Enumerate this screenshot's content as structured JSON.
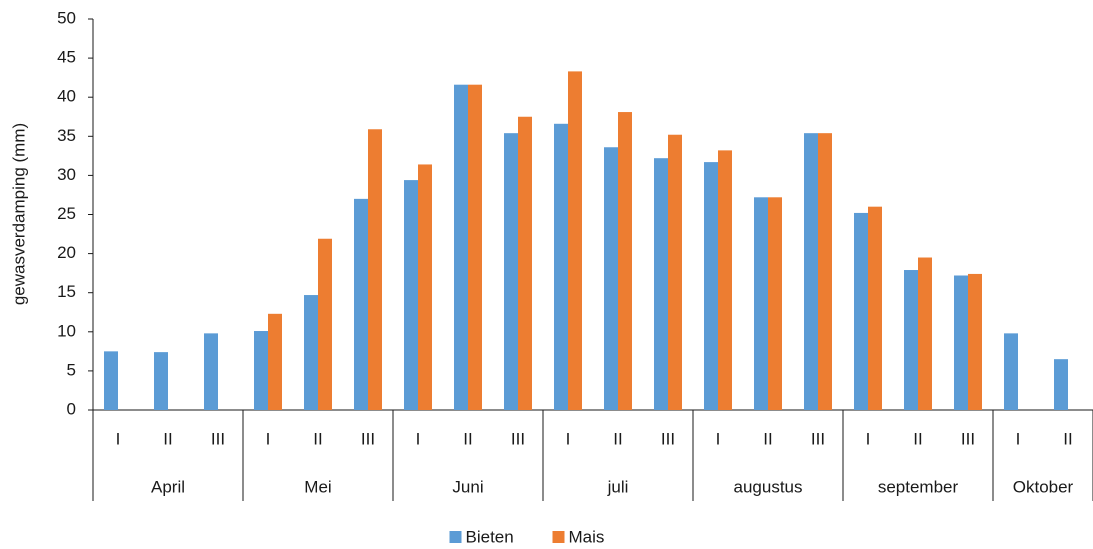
{
  "chart_data": {
    "type": "bar",
    "y_label": "gewasverdamping (mm)",
    "groups": [
      {
        "name": "April",
        "categories": [
          "I",
          "II",
          "III"
        ]
      },
      {
        "name": "Mei",
        "categories": [
          "I",
          "II",
          "III"
        ]
      },
      {
        "name": "Juni",
        "categories": [
          "I",
          "II",
          "III"
        ]
      },
      {
        "name": "juli",
        "categories": [
          "I",
          "II",
          "III"
        ]
      },
      {
        "name": "augustus",
        "categories": [
          "I",
          "II",
          "III"
        ]
      },
      {
        "name": "september",
        "categories": [
          "I",
          "II",
          "III"
        ]
      },
      {
        "name": "Oktober",
        "categories": [
          "I",
          "II"
        ]
      }
    ],
    "series": [
      {
        "name": "Bieten",
        "color": "#5b9bd5",
        "values": [
          7.5,
          7.4,
          9.8,
          10.1,
          14.7,
          27.0,
          29.4,
          41.6,
          35.4,
          36.6,
          33.6,
          32.2,
          31.7,
          27.2,
          35.4,
          25.2,
          17.9,
          17.2,
          9.8,
          6.5
        ]
      },
      {
        "name": "Mais",
        "color": "#ed7d31",
        "values": [
          null,
          null,
          null,
          12.3,
          21.9,
          35.9,
          31.4,
          41.6,
          37.5,
          43.3,
          38.1,
          35.2,
          33.2,
          27.2,
          35.4,
          26.0,
          19.5,
          17.4,
          null,
          null
        ]
      }
    ],
    "ylim": [
      0,
      50
    ],
    "yticks": [
      0,
      5,
      10,
      15,
      20,
      25,
      30,
      35,
      40,
      45,
      50
    ],
    "grid": false,
    "legend": "bottom"
  }
}
